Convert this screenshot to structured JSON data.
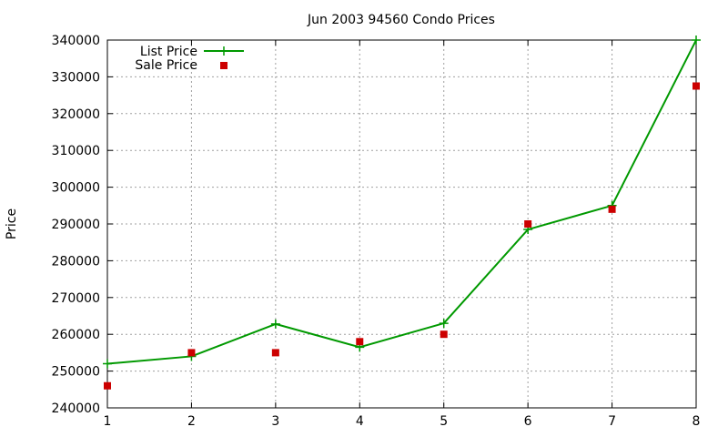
{
  "chart_data": {
    "type": "line",
    "title": "Jun 2003 94560 Condo Prices",
    "xlabel": "",
    "ylabel": "Price",
    "x": [
      1,
      2,
      3,
      4,
      5,
      6,
      7,
      8
    ],
    "xlim": [
      1,
      8
    ],
    "ylim": [
      240000,
      340000
    ],
    "x_ticks": [
      1,
      2,
      3,
      4,
      5,
      6,
      7,
      8
    ],
    "y_ticks": [
      240000,
      250000,
      260000,
      270000,
      280000,
      290000,
      300000,
      310000,
      320000,
      330000,
      340000
    ],
    "grid": true,
    "legend_position": "top-left",
    "series": [
      {
        "name": "List Price",
        "style": "line-with-plus-markers",
        "color": "#009900",
        "values": [
          252000,
          254000,
          262800,
          256500,
          263000,
          288500,
          295000,
          340000
        ]
      },
      {
        "name": "Sale Price",
        "style": "square-markers",
        "color": "#cc0000",
        "values": [
          246000,
          255000,
          255000,
          258000,
          260000,
          290000,
          294000,
          327500
        ]
      }
    ]
  }
}
